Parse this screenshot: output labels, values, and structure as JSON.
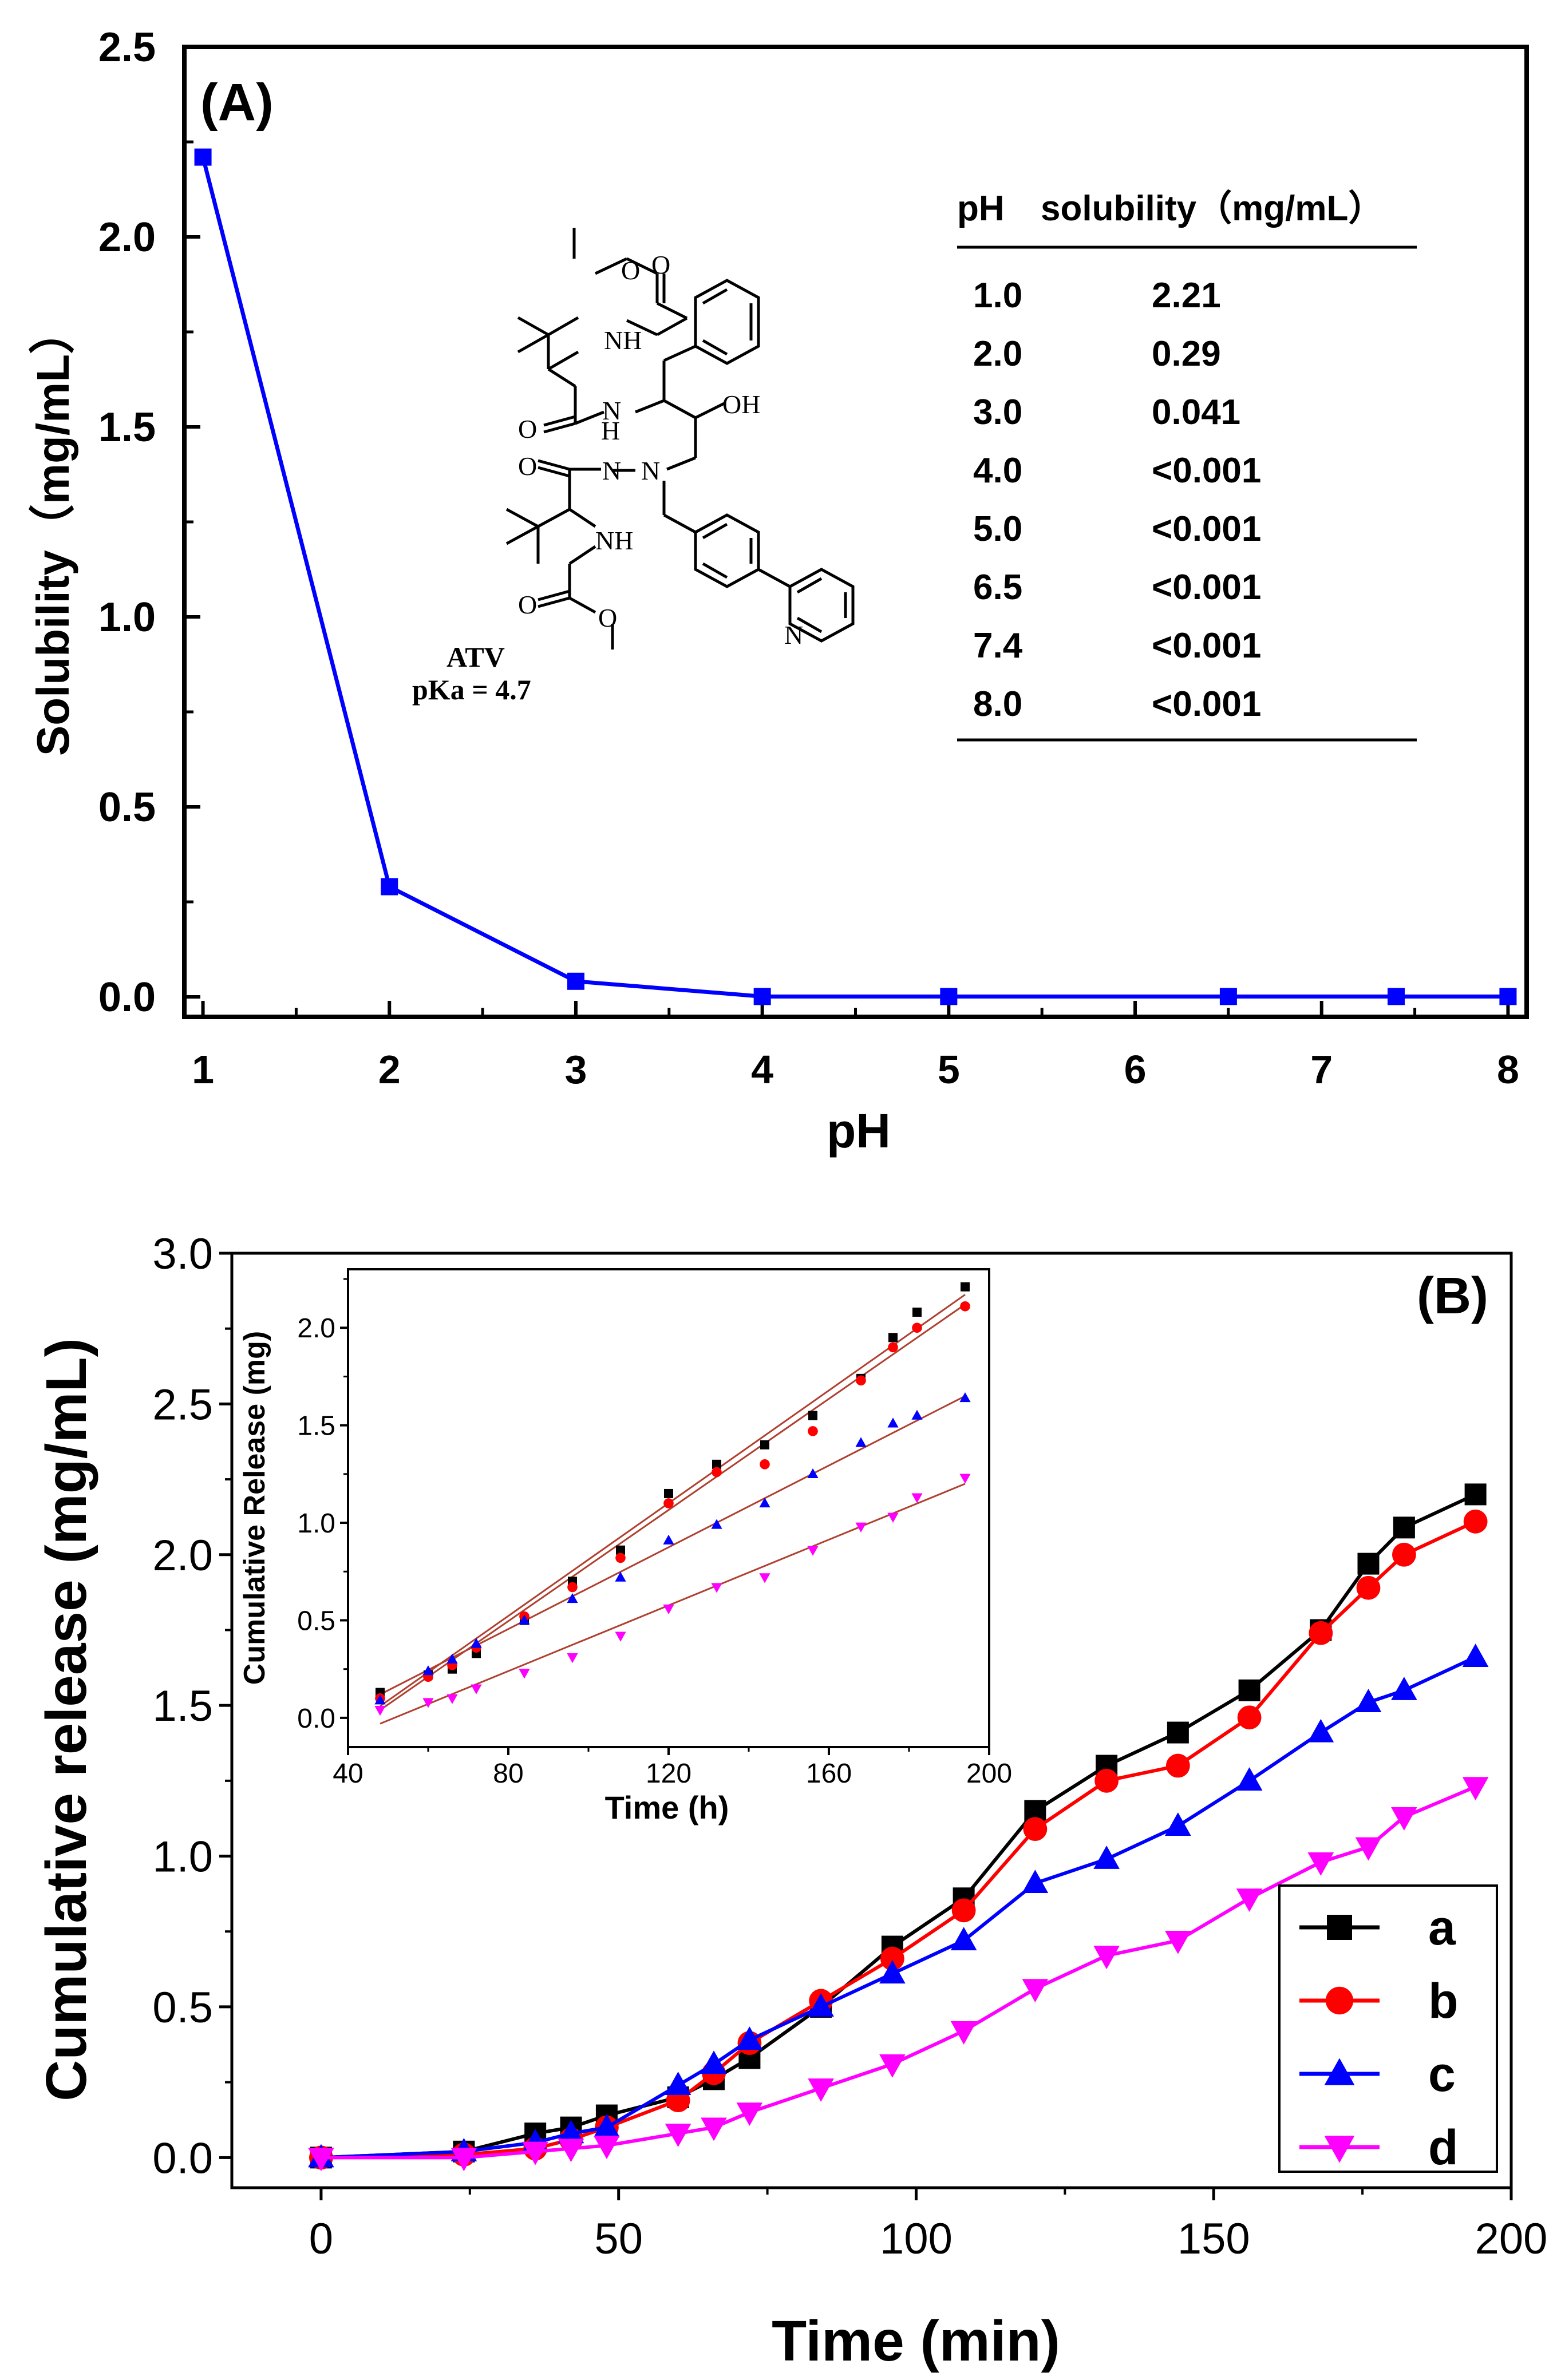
{
  "chart_data": [
    {
      "type": "line",
      "panel_label": "(A)",
      "xlabel": "pH",
      "ylabel": "Solubility（mg/mL）",
      "xlim": [
        1,
        8
      ],
      "ylim": [
        0,
        2.5
      ],
      "xticks": [
        "1",
        "2",
        "3",
        "4",
        "5",
        "6",
        "7",
        "8"
      ],
      "yticks": [
        "0.0",
        "0.5",
        "1.0",
        "1.5",
        "2.0",
        "2.5"
      ],
      "color": "#0000ff",
      "series": [
        {
          "x": [
            1.0,
            2.0,
            3.0,
            4.0,
            5.0,
            6.5,
            7.4,
            8.0
          ],
          "values": [
            2.21,
            0.29,
            0.041,
            0.001,
            0.001,
            0.001,
            0.001,
            0.001
          ]
        }
      ],
      "table": {
        "header_ph": "pH",
        "header_sol": "solubility（mg/mL）",
        "rows": [
          [
            "1.0",
            "2.21"
          ],
          [
            "2.0",
            "0.29"
          ],
          [
            "3.0",
            "0.041"
          ],
          [
            "4.0",
            "<0.001"
          ],
          [
            "5.0",
            "<0.001"
          ],
          [
            "6.5",
            "<0.001"
          ],
          [
            "7.4",
            "<0.001"
          ],
          [
            "8.0",
            "<0.001"
          ]
        ]
      },
      "structure": {
        "labels": [
          "O",
          "O",
          "NH",
          "H",
          "N",
          "OH",
          "O",
          "N",
          "N",
          "O",
          "NH",
          "O",
          "O",
          "N"
        ],
        "caption_name": "ATV",
        "caption_pka": "pKa = 4.7"
      }
    },
    {
      "type": "line",
      "panel_label": "(B)",
      "xlabel": "Time (min)",
      "ylabel": "Cumulative release (mg/mL)",
      "xlim": [
        -15,
        200
      ],
      "ylim": [
        -0.1,
        3.0
      ],
      "xticks": [
        "0",
        "50",
        "100",
        "150",
        "200"
      ],
      "yticks": [
        "0.0",
        "0.5",
        "1.0",
        "1.5",
        "2.0",
        "2.5",
        "3.0"
      ],
      "x": [
        0,
        24,
        36,
        42,
        48,
        60,
        66,
        72,
        84,
        96,
        108,
        120,
        132,
        144,
        156,
        168,
        176,
        182,
        194
      ],
      "series": [
        {
          "name": "a",
          "color": "#000000",
          "marker": "square",
          "values": [
            0,
            0.02,
            0.08,
            0.1,
            0.14,
            0.2,
            0.26,
            0.33,
            0.5,
            0.7,
            0.86,
            1.15,
            1.3,
            1.41,
            1.55,
            1.75,
            1.97,
            2.09,
            2.2
          ]
        },
        {
          "name": "b",
          "color": "#ff0000",
          "marker": "circle",
          "values": [
            0,
            0.01,
            0.03,
            0.06,
            0.1,
            0.19,
            0.28,
            0.38,
            0.52,
            0.66,
            0.82,
            1.09,
            1.25,
            1.3,
            1.46,
            1.74,
            1.89,
            2.0,
            2.11
          ]
        },
        {
          "name": "c",
          "color": "#0000ff",
          "marker": "triangle-up",
          "values": [
            0,
            0.02,
            0.05,
            0.08,
            0.1,
            0.24,
            0.31,
            0.39,
            0.5,
            0.61,
            0.72,
            0.91,
            0.99,
            1.1,
            1.25,
            1.41,
            1.51,
            1.55,
            1.66
          ]
        },
        {
          "name": "d",
          "color": "#ff00ff",
          "marker": "triangle-down",
          "values": [
            0,
            0.0,
            0.02,
            0.03,
            0.04,
            0.08,
            0.1,
            0.15,
            0.23,
            0.31,
            0.42,
            0.56,
            0.67,
            0.72,
            0.86,
            0.98,
            1.03,
            1.13,
            1.23
          ]
        }
      ],
      "legend_position": "bottom-right",
      "inset": {
        "type": "scatter",
        "xlabel": "Time (h)",
        "ylabel": "Cumulative Release (mg)",
        "xlim": [
          40,
          200
        ],
        "ylim": [
          -0.15,
          2.3
        ],
        "xticks": [
          "40",
          "80",
          "120",
          "160",
          "200"
        ],
        "yticks": [
          "0.0",
          "0.5",
          "1.0",
          "1.5",
          "2.0"
        ],
        "fit_color": "#b04030",
        "x": [
          48,
          60,
          66,
          72,
          84,
          96,
          108,
          120,
          132,
          144,
          156,
          168,
          176,
          182,
          194
        ],
        "series": [
          {
            "color": "#000000",
            "marker": "square",
            "values": [
              0.13,
              0.22,
              0.25,
              0.33,
              0.5,
              0.7,
              0.86,
              1.15,
              1.3,
              1.4,
              1.55,
              1.74,
              1.95,
              2.08,
              2.21
            ],
            "fit": [
              0.06,
              2.17
            ]
          },
          {
            "color": "#ff0000",
            "marker": "circle",
            "values": [
              0.1,
              0.21,
              0.27,
              0.36,
              0.52,
              0.67,
              0.82,
              1.1,
              1.26,
              1.3,
              1.47,
              1.73,
              1.9,
              2.0,
              2.11
            ],
            "fit": [
              0.04,
              2.12
            ]
          },
          {
            "color": "#0000ff",
            "marker": "triangle-up",
            "values": [
              0.09,
              0.24,
              0.3,
              0.38,
              0.5,
              0.61,
              0.72,
              0.91,
              0.99,
              1.1,
              1.25,
              1.41,
              1.51,
              1.55,
              1.64
            ],
            "fit": [
              0.12,
              1.65
            ]
          },
          {
            "color": "#ff00ff",
            "marker": "triangle-down",
            "values": [
              0.04,
              0.08,
              0.1,
              0.15,
              0.23,
              0.31,
              0.42,
              0.56,
              0.67,
              0.72,
              0.86,
              0.98,
              1.03,
              1.13,
              1.23
            ],
            "fit": [
              -0.03,
              1.2
            ]
          }
        ]
      }
    }
  ]
}
